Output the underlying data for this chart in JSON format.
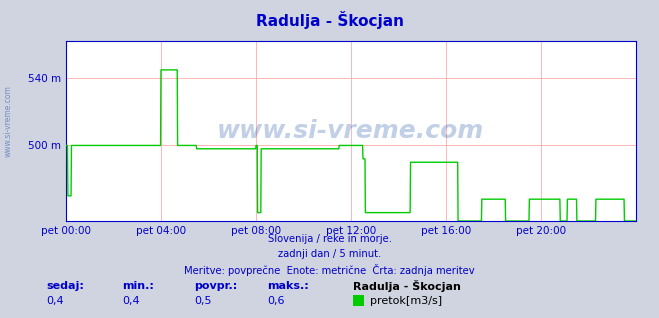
{
  "title": "Radulja - Škocjan",
  "title_color": "#0000cc",
  "bg_color": "#d0d4e0",
  "plot_bg_color": "#ffffff",
  "grid_color": "#ffaaaa",
  "line_color": "#00cc00",
  "axis_color": "#0000cc",
  "tick_color": "#0000cc",
  "spine_color": "#0000cc",
  "arrow_color": "#cc0000",
  "watermark_text": "www.si-vreme.com",
  "watermark_color": "#2255aa",
  "watermark_alpha": 0.28,
  "side_watermark": "www.si-vreme.com",
  "subtitle_lines": [
    "Slovenija / reke in morje.",
    "zadnji dan / 5 minut.",
    "Meritve: povprečne  Enote: metrične  Črta: zadnja meritev"
  ],
  "subtitle_color": "#0000cc",
  "xlabel_ticks": [
    "pet 00:00",
    "pet 04:00",
    "pet 08:00",
    "pet 12:00",
    "pet 16:00",
    "pet 20:00"
  ],
  "xlabel_tick_positions": [
    0,
    4,
    8,
    12,
    16,
    20
  ],
  "xlim": [
    0,
    24
  ],
  "ylim": [
    455,
    562
  ],
  "yticks": [
    500,
    540
  ],
  "ytick_labels": [
    "500 m",
    "540 m"
  ],
  "legend_label": "pretok[m3/s]",
  "legend_color": "#00cc00",
  "stat_labels": [
    "sedaj:",
    "min.:",
    "povpr.:",
    "maks.:"
  ],
  "stat_values": [
    "0,4",
    "0,4",
    "0,5",
    "0,6"
  ],
  "stat_station": "Radulja - Škocjan",
  "dpi": 100,
  "figsize": [
    6.59,
    3.18
  ]
}
